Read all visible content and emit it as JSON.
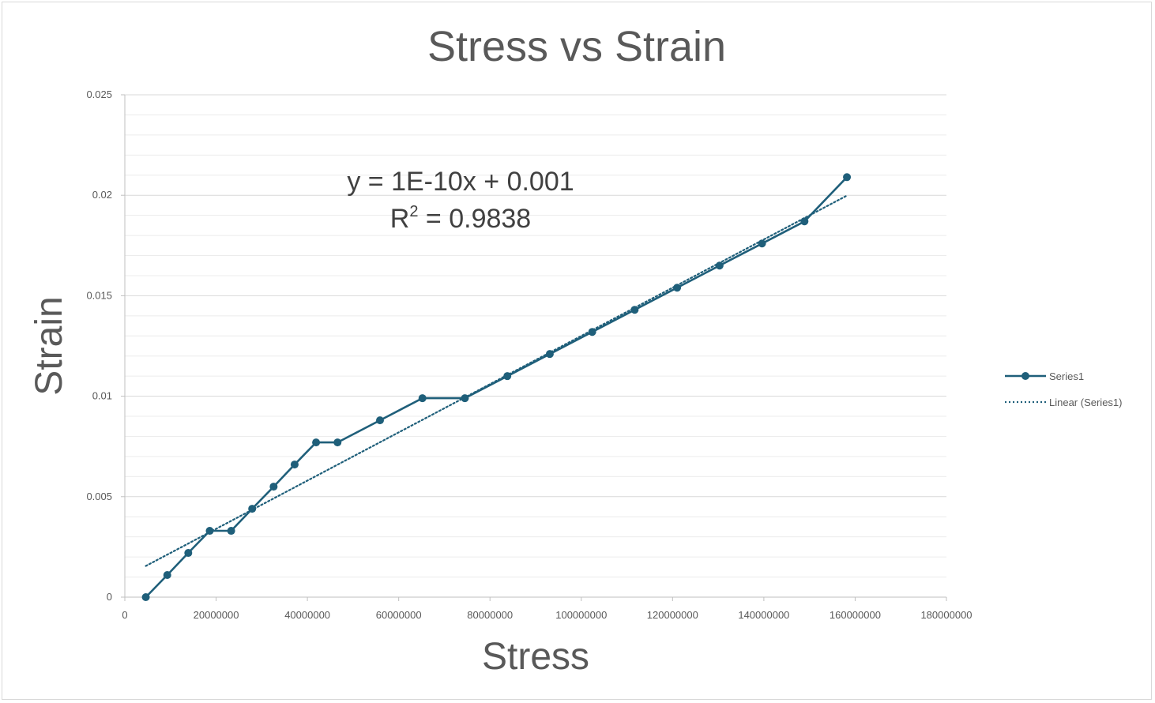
{
  "chart_data": {
    "type": "scatter",
    "title": "Stress vs Strain",
    "xlabel": "Stress",
    "ylabel": "Strain",
    "xlim": [
      0,
      180000000
    ],
    "ylim": [
      0,
      0.025
    ],
    "x_ticks": [
      "0",
      "20000000",
      "40000000",
      "60000000",
      "80000000",
      "100000000",
      "120000000",
      "140000000",
      "160000000",
      "180000000"
    ],
    "y_ticks": [
      "0",
      "0.005",
      "0.01",
      "0.015",
      "0.02",
      "0.025"
    ],
    "grid": true,
    "legend_position": "right",
    "series": [
      {
        "name": "Series1",
        "color": "#1f5f7a",
        "style": "line-with-markers",
        "points": [
          [
            4600000,
            0.0
          ],
          [
            9300000,
            0.0011
          ],
          [
            13900000,
            0.0022
          ],
          [
            18600000,
            0.0033
          ],
          [
            23300000,
            0.0033
          ],
          [
            27900000,
            0.0044
          ],
          [
            32600000,
            0.0055
          ],
          [
            37200000,
            0.0066
          ],
          [
            41900000,
            0.0077
          ],
          [
            46600000,
            0.0077
          ],
          [
            55900000,
            0.0088
          ],
          [
            65200000,
            0.0099
          ],
          [
            74500000,
            0.0099
          ],
          [
            83800000,
            0.011
          ],
          [
            93100000,
            0.0121
          ],
          [
            102400000,
            0.0132
          ],
          [
            111700000,
            0.0143
          ],
          [
            121000000,
            0.0154
          ],
          [
            130300000,
            0.0165
          ],
          [
            139600000,
            0.0176
          ],
          [
            148900000,
            0.0187
          ],
          [
            158200000,
            0.0209
          ]
        ]
      }
    ],
    "trendline": {
      "name": "Linear (Series1)",
      "color": "#1f5f7a",
      "style": "dotted",
      "slope": 1.2e-10,
      "intercept": 0.001,
      "x_range": [
        4600000,
        158200000
      ],
      "equation": "y = 1E-10x + 0.001",
      "r2_label": "R",
      "r2_sup": "2",
      "r2_value": " = 0.9838"
    }
  }
}
